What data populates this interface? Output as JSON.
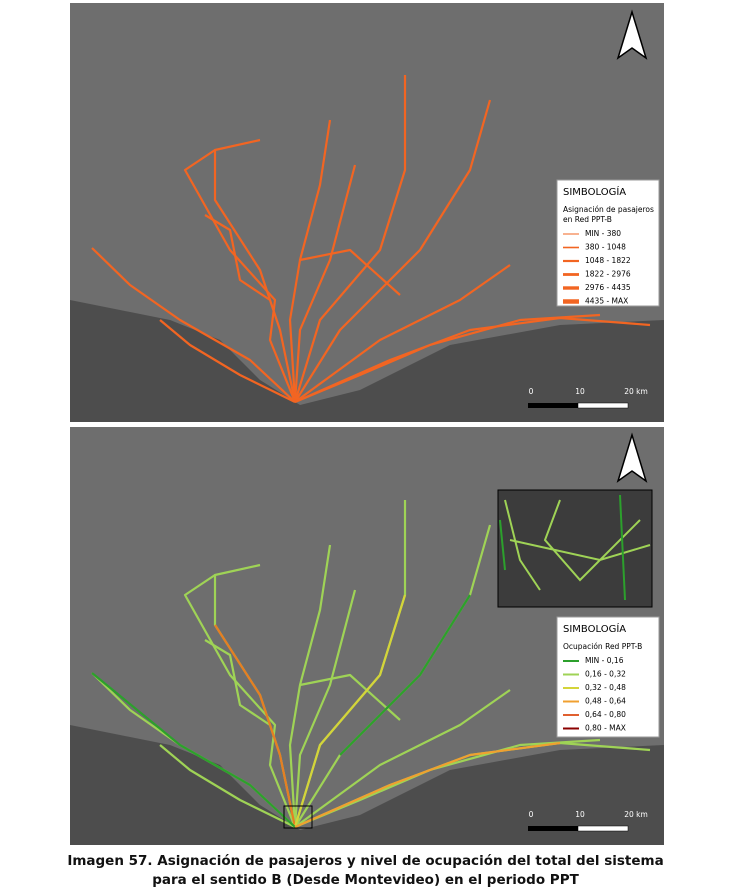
{
  "maps": [
    {
      "north": "N",
      "legend": {
        "title": "SIMBOLOGÍA",
        "subtitle": [
          "Asignación de pasajeros",
          "en Red PPT-B"
        ],
        "items": [
          "MIN - 380",
          "380 - 1048",
          "1048 - 1822",
          "1822 - 2976",
          "2976 - 4435",
          "4435 - MAX"
        ]
      },
      "scale": [
        "0",
        "10",
        "20 km"
      ]
    },
    {
      "north": "N",
      "legend": {
        "title": "SIMBOLOGÍA",
        "subtitle": [
          "Ocupación Red PPT-B"
        ],
        "items": [
          "MIN - 0,16",
          "0,16 - 0,32",
          "0,32 - 0,48",
          "0,48 - 0,64",
          "0,64 - 0,80",
          "0,80 - MAX"
        ]
      },
      "scale": [
        "0",
        "10",
        "20 km"
      ]
    }
  ],
  "caption": [
    "Imagen 57. Asignación de pasajeros y nivel de ocupación del total del sistema",
    "para el sentido B (Desde Montevideo) en el periodo PPT"
  ]
}
